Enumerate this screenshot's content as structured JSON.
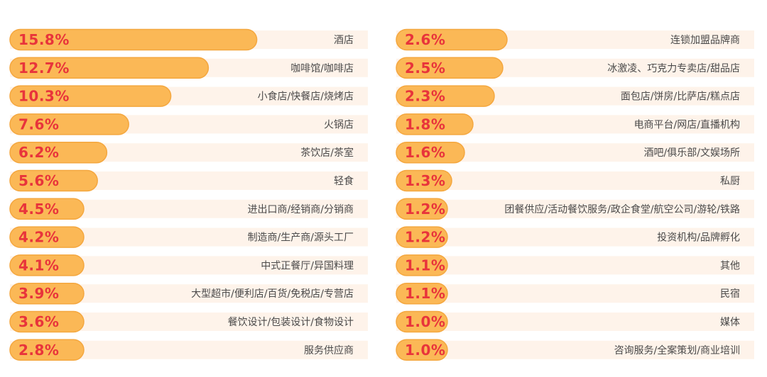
{
  "chart_data": [
    {
      "type": "bar",
      "orientation": "horizontal",
      "value_unit": "%",
      "categories": [
        "酒店",
        "咖啡馆/咖啡店",
        "小食店/快餐店/烧烤店",
        "火锅店",
        "茶饮店/茶室",
        "轻食",
        "进出口商/经销商/分销商",
        "制造商/生产商/源头工厂",
        "中式正餐厅/异国料理",
        "大型超市/便利店/百货/免税店/专营店",
        "餐饮设计/包装设计/食物设计",
        "服务供应商"
      ],
      "values": [
        15.8,
        12.7,
        10.3,
        7.6,
        6.2,
        5.6,
        4.5,
        4.2,
        4.1,
        3.9,
        3.6,
        2.8
      ],
      "labels": [
        "15.8%",
        "12.7%",
        "10.3%",
        "7.6%",
        "6.2%",
        "5.6%",
        "4.5%",
        "4.2%",
        "4.1%",
        "3.9%",
        "3.6%",
        "2.8%"
      ]
    },
    {
      "type": "bar",
      "orientation": "horizontal",
      "value_unit": "%",
      "categories": [
        "连锁加盟品牌商",
        "冰激凌、巧克力专卖店/甜品店",
        "面包店/饼房/比萨店/糕点店",
        "电商平台/网店/直播机构",
        "酒吧/俱乐部/文娱场所",
        "私厨",
        "团餐供应/活动餐饮服务/政企食堂/航空公司/游轮/铁路",
        "投资机构/品牌孵化",
        "其他",
        "民宿",
        "媒体",
        "咨询服务/全案策划/商业培训"
      ],
      "values": [
        2.6,
        2.5,
        2.3,
        1.8,
        1.6,
        1.3,
        1.2,
        1.2,
        1.1,
        1.1,
        1.0,
        1.0
      ],
      "labels": [
        "2.6%",
        "2.5%",
        "2.3%",
        "1.8%",
        "1.6%",
        "1.3%",
        "1.2%",
        "1.2%",
        "1.1%",
        "1.1%",
        "1.0%",
        "1.0%"
      ]
    }
  ],
  "colors": {
    "bar_fill": "#fbb856",
    "bar_stroke": "#f4a73f",
    "row_background": "#fef3ea",
    "value_text": "#e8343b",
    "category_text": "#4a4a4a"
  }
}
